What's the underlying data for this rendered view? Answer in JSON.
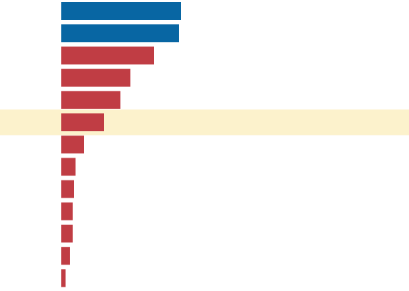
{
  "chart_data": {
    "type": "barh",
    "categories": [
      null,
      null,
      null,
      null,
      null,
      null,
      null,
      null,
      null,
      null,
      null,
      null,
      null
    ],
    "values": [
      168,
      165,
      130,
      97,
      83,
      60,
      32,
      20,
      18,
      16,
      16,
      12,
      6
    ],
    "colors": [
      "#0866a3",
      "#0866a3",
      "#c03d44",
      "#c03d44",
      "#c03d44",
      "#c03d44",
      "#c03d44",
      "#c03d44",
      "#c03d44",
      "#c03d44",
      "#c03d44",
      "#c03d44",
      "#c03d44"
    ],
    "highlight_index": 5,
    "highlight_color": "#fcf2cc"
  }
}
